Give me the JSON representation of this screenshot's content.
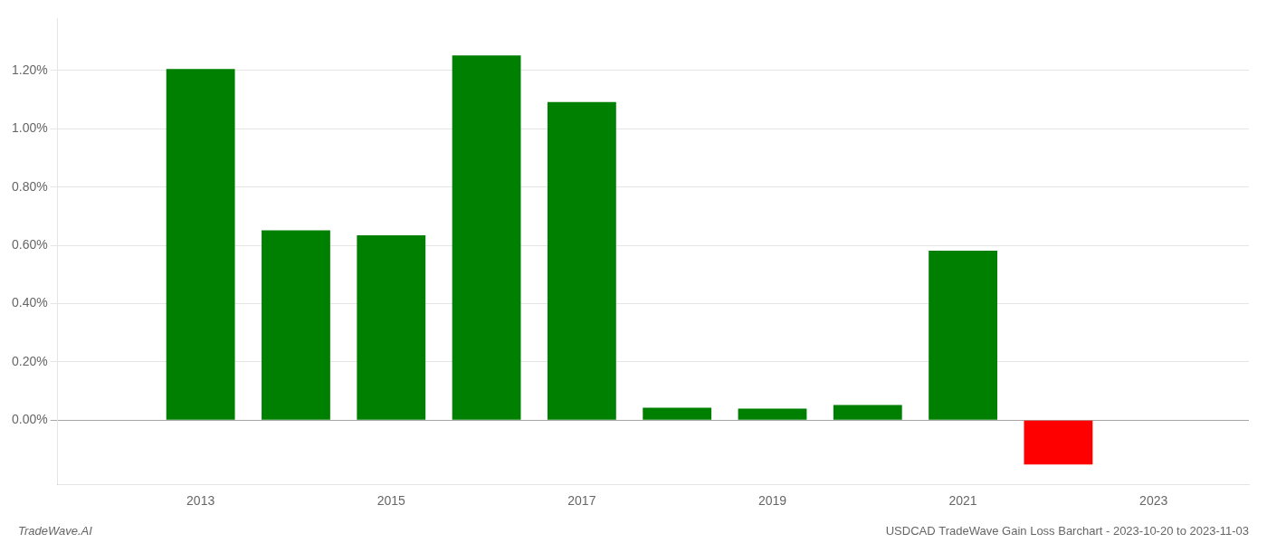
{
  "chart_data": {
    "type": "bar",
    "x": [
      2013,
      2014,
      2015,
      2016,
      2017,
      2018,
      2019,
      2020,
      2021,
      2022
    ],
    "values": [
      1.205,
      0.652,
      0.635,
      1.252,
      1.092,
      0.043,
      0.04,
      0.052,
      0.582,
      -0.152
    ],
    "colors": [
      "#008000",
      "#008000",
      "#008000",
      "#008000",
      "#008000",
      "#008000",
      "#008000",
      "#008000",
      "#008000",
      "#ff0000"
    ],
    "xlim": [
      2011.5,
      2024.0
    ],
    "xticks": [
      2013,
      2015,
      2017,
      2019,
      2021,
      2023
    ],
    "ylim": [
      -0.22,
      1.38
    ],
    "yticks": [
      {
        "value": 0.0,
        "label": "0.00%"
      },
      {
        "value": 0.2,
        "label": "0.20%"
      },
      {
        "value": 0.4,
        "label": "0.40%"
      },
      {
        "value": 0.6,
        "label": "0.60%"
      },
      {
        "value": 0.8,
        "label": "0.80%"
      },
      {
        "value": 1.0,
        "label": "1.00%"
      },
      {
        "value": 1.2,
        "label": "1.20%"
      }
    ],
    "grid": true,
    "annotations": [
      "TradeWave.AI",
      "USDCAD TradeWave Gain Loss Barchart - 2023-10-20 to 2023-11-03"
    ]
  }
}
